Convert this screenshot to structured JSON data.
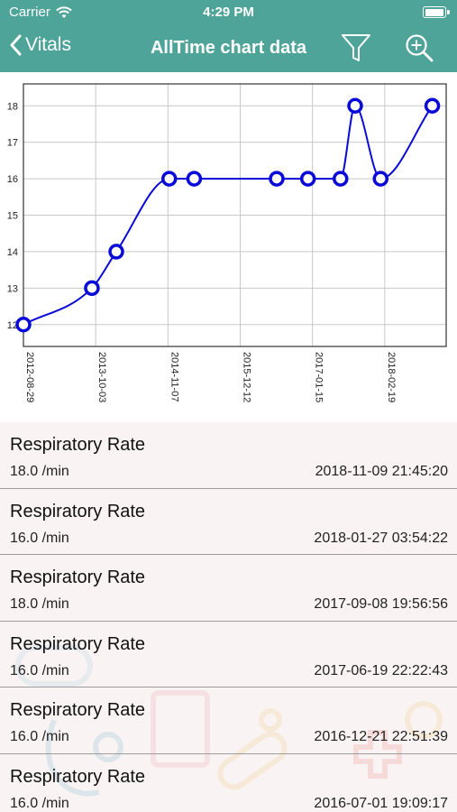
{
  "status_bar": {
    "carrier": "Carrier",
    "time": "4:29 PM",
    "battery_level": 1.0
  },
  "nav": {
    "back_label": "Vitals",
    "title": "AllTime chart data",
    "filter_icon": "filter-icon",
    "zoom_icon": "zoom-in-icon"
  },
  "colors": {
    "header": "#4fa49a",
    "line": "#0a0ad8",
    "list_bg": "#f9f4f3"
  },
  "chart_data": {
    "type": "line",
    "x_ticks": [
      "2012-08-29",
      "2013-10-03",
      "2014-11-07",
      "2015-12-12",
      "2017-01-15",
      "2018-02-19"
    ],
    "y_ticks": [
      12,
      13,
      14,
      15,
      16,
      17,
      18
    ],
    "ylim": [
      11.4,
      18.6
    ],
    "xlim": [
      "2012-08-29",
      "2019-01-25"
    ],
    "grid": true,
    "points": [
      {
        "x": "2012-08-29",
        "y": 12
      },
      {
        "x": "2013-09-12",
        "y": 13
      },
      {
        "x": "2014-01-25",
        "y": 14
      },
      {
        "x": "2014-11-14",
        "y": 16
      },
      {
        "x": "2015-04-01",
        "y": 16
      },
      {
        "x": "2016-07-01",
        "y": 16
      },
      {
        "x": "2016-12-21",
        "y": 16
      },
      {
        "x": "2017-06-19",
        "y": 16
      },
      {
        "x": "2017-09-08",
        "y": 18
      },
      {
        "x": "2018-01-27",
        "y": 16
      },
      {
        "x": "2018-11-09",
        "y": 18
      }
    ]
  },
  "records": [
    {
      "title": "Respiratory Rate",
      "value": "18.0 /min",
      "date": "2018-11-09 21:45:20"
    },
    {
      "title": "Respiratory Rate",
      "value": "16.0 /min",
      "date": "2018-01-27 03:54:22"
    },
    {
      "title": "Respiratory Rate",
      "value": "18.0 /min",
      "date": "2017-09-08 19:56:56"
    },
    {
      "title": "Respiratory Rate",
      "value": "16.0 /min",
      "date": "2017-06-19 22:22:43"
    },
    {
      "title": "Respiratory Rate",
      "value": "16.0 /min",
      "date": "2016-12-21 22:51:39"
    },
    {
      "title": "Respiratory Rate",
      "value": "16.0 /min",
      "date": "2016-07-01 19:09:17"
    }
  ]
}
